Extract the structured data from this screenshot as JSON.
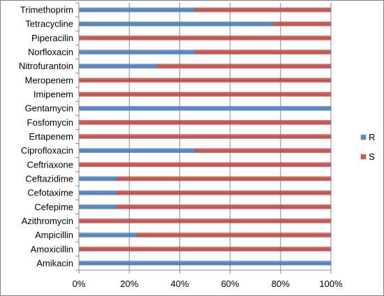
{
  "chart_data": {
    "type": "bar",
    "orientation": "horizontal",
    "stacked": "percent",
    "categories": [
      "Trimethoprim",
      "Tetracycline",
      "Piperacilin",
      "Norfloxacin",
      "Nitrofurantoin",
      "Meropenem",
      "Imipenem",
      "Gentamycin",
      "Fosfomycin",
      "Ertapenem",
      "Ciprofloxacin",
      "Ceftriaxone",
      "Ceftazidime",
      "Cefotaxime",
      "Cefepime",
      "Azithromycin",
      "Ampicillin",
      "Amoxicillin",
      "Amikacin"
    ],
    "series": [
      {
        "name": "R",
        "color": "#4f81bd",
        "values": [
          46,
          77,
          0,
          46,
          31,
          0,
          0,
          100,
          0,
          0,
          46,
          0,
          15,
          15,
          15,
          0,
          23,
          0,
          100
        ]
      },
      {
        "name": "S",
        "color": "#c0504d",
        "values": [
          54,
          23,
          100,
          54,
          69,
          100,
          100,
          0,
          100,
          100,
          54,
          100,
          85,
          85,
          85,
          100,
          77,
          100,
          0
        ]
      }
    ],
    "x_ticks": [
      "0%",
      "20%",
      "40%",
      "60%",
      "80%",
      "100%"
    ],
    "xlim": [
      0,
      100
    ],
    "grid": "vertical",
    "legend": "right",
    "title": "",
    "xlabel": "",
    "ylabel": ""
  }
}
